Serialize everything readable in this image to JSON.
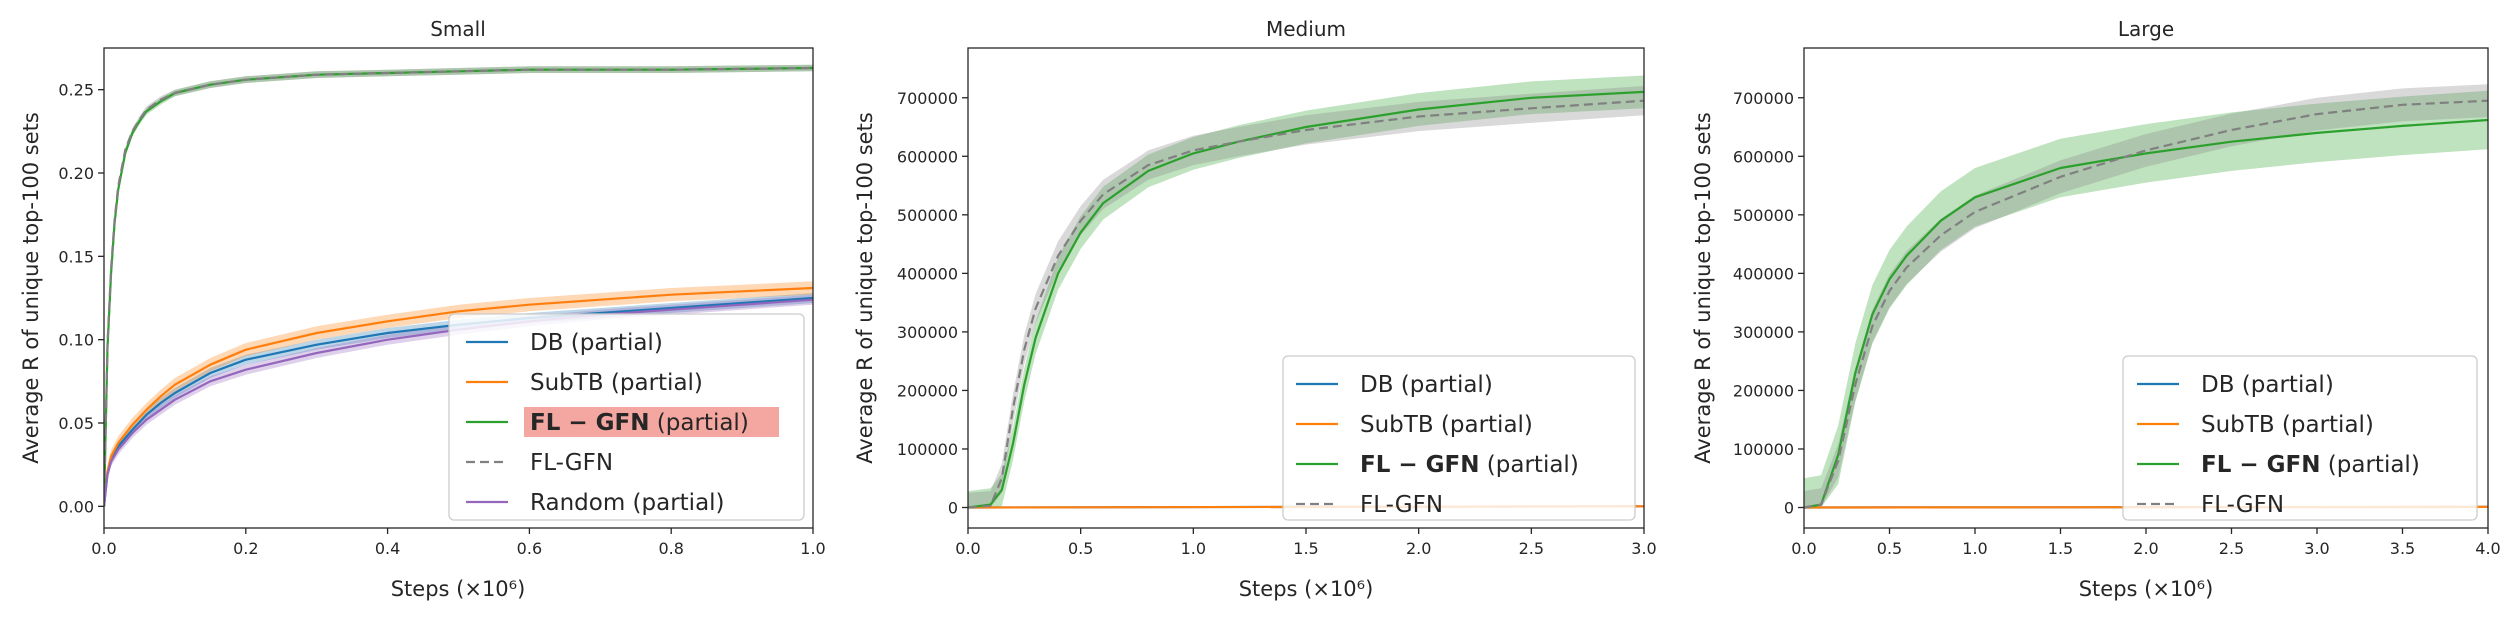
{
  "chart_data": [
    {
      "type": "line",
      "title": "Small",
      "xlabel": "Steps (×10⁶)",
      "ylabel": "Average R of unique top-100 sets",
      "xlim": [
        0,
        1.0
      ],
      "ylim": [
        -0.013,
        0.275
      ],
      "xticks": [
        "0.0",
        "0.2",
        "0.4",
        "0.6",
        "0.8",
        "1.0"
      ],
      "yticks": [
        "0.00",
        "0.05",
        "0.10",
        "0.15",
        "0.20",
        "0.25"
      ],
      "legend_position": "lower-right",
      "grid": false,
      "series": [
        {
          "name": "DB (partial)",
          "color": "#1f77b4",
          "style": "solid",
          "band": 0.003,
          "x": [
            0,
            0.005,
            0.01,
            0.02,
            0.04,
            0.06,
            0.08,
            0.1,
            0.15,
            0.2,
            0.3,
            0.4,
            0.5,
            0.6,
            0.7,
            0.8,
            0.9,
            1.0
          ],
          "y": [
            0.0,
            0.02,
            0.028,
            0.036,
            0.046,
            0.055,
            0.062,
            0.068,
            0.08,
            0.088,
            0.097,
            0.104,
            0.109,
            0.113,
            0.116,
            0.119,
            0.122,
            0.125
          ]
        },
        {
          "name": "SubTB (partial)",
          "color": "#ff7f0e",
          "style": "solid",
          "band": 0.004,
          "x": [
            0,
            0.005,
            0.01,
            0.02,
            0.04,
            0.06,
            0.08,
            0.1,
            0.15,
            0.2,
            0.3,
            0.4,
            0.5,
            0.6,
            0.7,
            0.8,
            0.9,
            1.0
          ],
          "y": [
            0.0,
            0.021,
            0.03,
            0.038,
            0.049,
            0.058,
            0.066,
            0.073,
            0.085,
            0.094,
            0.104,
            0.111,
            0.117,
            0.121,
            0.124,
            0.127,
            0.129,
            0.131
          ]
        },
        {
          "name": "FL − GFN",
          "name_suffix": " (partial)",
          "color": "#2ca02c",
          "style": "solid",
          "band": 0.002,
          "highlight": "#f4a6a0",
          "x": [
            0,
            0.005,
            0.01,
            0.015,
            0.02,
            0.03,
            0.04,
            0.05,
            0.06,
            0.08,
            0.1,
            0.15,
            0.2,
            0.3,
            0.4,
            0.5,
            0.6,
            0.8,
            1.0
          ],
          "y": [
            0.0,
            0.095,
            0.14,
            0.17,
            0.19,
            0.212,
            0.224,
            0.231,
            0.237,
            0.243,
            0.248,
            0.253,
            0.256,
            0.259,
            0.26,
            0.261,
            0.262,
            0.262,
            0.263
          ]
        },
        {
          "name": "FL-GFN",
          "color": "#808080",
          "style": "dashed",
          "band": 0.002,
          "x": [
            0,
            0.005,
            0.01,
            0.015,
            0.02,
            0.03,
            0.04,
            0.05,
            0.06,
            0.08,
            0.1,
            0.15,
            0.2,
            0.3,
            0.4,
            0.5,
            0.6,
            0.8,
            1.0
          ],
          "y": [
            0.0,
            0.098,
            0.143,
            0.172,
            0.192,
            0.214,
            0.225,
            0.232,
            0.238,
            0.244,
            0.248,
            0.253,
            0.256,
            0.259,
            0.26,
            0.261,
            0.262,
            0.262,
            0.263
          ]
        },
        {
          "name": "Random (partial)",
          "color": "#9467bd",
          "style": "solid",
          "band": 0.003,
          "x": [
            0,
            0.005,
            0.01,
            0.02,
            0.04,
            0.06,
            0.08,
            0.1,
            0.15,
            0.2,
            0.3,
            0.4,
            0.5,
            0.6,
            0.7,
            0.8,
            0.9,
            1.0
          ],
          "y": [
            0.0,
            0.019,
            0.027,
            0.034,
            0.044,
            0.052,
            0.058,
            0.064,
            0.075,
            0.082,
            0.092,
            0.1,
            0.106,
            0.111,
            0.115,
            0.118,
            0.121,
            0.124
          ]
        }
      ]
    },
    {
      "type": "line",
      "title": "Medium",
      "xlabel": "Steps (×10⁶)",
      "ylabel": "Average R of unique top-100 sets",
      "xlim": [
        0,
        3.0
      ],
      "ylim": [
        -35000,
        785000
      ],
      "xticks": [
        "0.0",
        "0.5",
        "1.0",
        "1.5",
        "2.0",
        "2.5",
        "3.0"
      ],
      "yticks": [
        "0",
        "100000",
        "200000",
        "300000",
        "400000",
        "500000",
        "600000",
        "700000"
      ],
      "legend_position": "lower-right",
      "grid": false,
      "series": [
        {
          "name": "DB (partial)",
          "color": "#1f77b4",
          "style": "solid",
          "band": 0,
          "x": [
            0,
            3.0
          ],
          "y": [
            0,
            2000
          ]
        },
        {
          "name": "SubTB (partial)",
          "color": "#ff7f0e",
          "style": "solid",
          "band": 0,
          "x": [
            0,
            3.0
          ],
          "y": [
            0,
            2000
          ]
        },
        {
          "name": "FL − GFN",
          "name_suffix": " (partial)",
          "color": "#2ca02c",
          "style": "solid",
          "band": 28000,
          "x": [
            0,
            0.1,
            0.15,
            0.2,
            0.25,
            0.3,
            0.4,
            0.5,
            0.6,
            0.8,
            1.0,
            1.2,
            1.5,
            2.0,
            2.5,
            3.0
          ],
          "y": [
            0,
            5000,
            30000,
            110000,
            210000,
            290000,
            400000,
            470000,
            520000,
            575000,
            605000,
            625000,
            650000,
            680000,
            700000,
            710000
          ]
        },
        {
          "name": "FL-GFN",
          "color": "#808080",
          "style": "dashed",
          "band": 25000,
          "x": [
            0,
            0.1,
            0.15,
            0.2,
            0.25,
            0.3,
            0.4,
            0.5,
            0.6,
            0.8,
            1.0,
            1.2,
            1.5,
            2.0,
            2.5,
            3.0
          ],
          "y": [
            0,
            3000,
            50000,
            170000,
            270000,
            340000,
            430000,
            490000,
            535000,
            585000,
            610000,
            625000,
            645000,
            668000,
            682000,
            695000
          ]
        }
      ]
    },
    {
      "type": "line",
      "title": "Large",
      "xlabel": "Steps (×10⁶)",
      "ylabel": "Average R of unique top-100 sets",
      "xlim": [
        0,
        4.0
      ],
      "ylim": [
        -35000,
        785000
      ],
      "xticks": [
        "0.0",
        "0.5",
        "1.0",
        "1.5",
        "2.0",
        "2.5",
        "3.0",
        "3.5",
        "4.0"
      ],
      "yticks": [
        "0",
        "100000",
        "200000",
        "300000",
        "400000",
        "500000",
        "600000",
        "700000"
      ],
      "legend_position": "lower-right",
      "grid": false,
      "series": [
        {
          "name": "DB (partial)",
          "color": "#1f77b4",
          "style": "solid",
          "band": 0,
          "x": [
            0,
            4.0
          ],
          "y": [
            0,
            1000
          ]
        },
        {
          "name": "SubTB (partial)",
          "color": "#ff7f0e",
          "style": "solid",
          "band": 0,
          "x": [
            0,
            4.0
          ],
          "y": [
            0,
            1000
          ]
        },
        {
          "name": "FL − GFN",
          "name_suffix": " (partial)",
          "color": "#2ca02c",
          "style": "solid",
          "band": 50000,
          "x": [
            0,
            0.1,
            0.2,
            0.3,
            0.4,
            0.5,
            0.6,
            0.8,
            1.0,
            1.5,
            2.0,
            2.5,
            3.0,
            3.5,
            4.0
          ],
          "y": [
            0,
            5000,
            90000,
            230000,
            330000,
            390000,
            430000,
            490000,
            530000,
            580000,
            605000,
            625000,
            640000,
            652000,
            662000
          ]
        },
        {
          "name": "FL-GFN",
          "color": "#808080",
          "style": "dashed",
          "band": 28000,
          "x": [
            0,
            0.1,
            0.2,
            0.3,
            0.4,
            0.5,
            0.6,
            0.8,
            1.0,
            1.5,
            2.0,
            2.5,
            3.0,
            3.5,
            4.0
          ],
          "y": [
            0,
            5000,
            80000,
            210000,
            310000,
            370000,
            410000,
            465000,
            505000,
            565000,
            610000,
            645000,
            672000,
            688000,
            695000
          ]
        }
      ]
    }
  ]
}
